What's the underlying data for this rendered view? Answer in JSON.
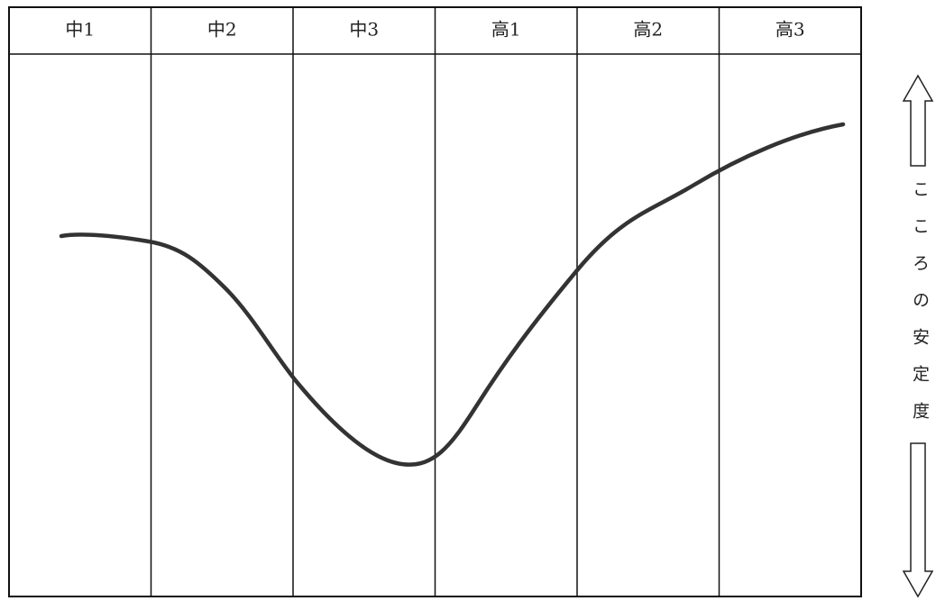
{
  "columns": [
    "中1",
    "中2",
    "中3",
    "高1",
    "高2",
    "高3"
  ],
  "axis_label": "こころの安定度"
}
